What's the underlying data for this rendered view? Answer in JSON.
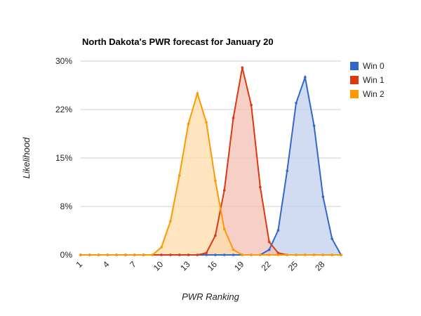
{
  "chart_data": {
    "type": "area",
    "title": "North Dakota's PWR forecast for January 20",
    "xlabel": "PWR Ranking",
    "ylabel": "Likelihood",
    "x": [
      1,
      2,
      3,
      4,
      5,
      6,
      7,
      8,
      9,
      10,
      11,
      12,
      13,
      14,
      15,
      16,
      17,
      18,
      19,
      20,
      21,
      22,
      23,
      24,
      25,
      26,
      27,
      28,
      29,
      30
    ],
    "x_ticks": [
      1,
      4,
      7,
      10,
      13,
      16,
      19,
      22,
      25,
      28
    ],
    "y_ticks": [
      {
        "value": 0,
        "label": "0%"
      },
      {
        "value": 7.5,
        "label": "8%"
      },
      {
        "value": 15,
        "label": "15%"
      },
      {
        "value": 22.5,
        "label": "22%"
      },
      {
        "value": 30,
        "label": "30%"
      }
    ],
    "ylim": [
      0,
      30
    ],
    "xlim": [
      1,
      30
    ],
    "grid": true,
    "legend_position": "right",
    "series": [
      {
        "name": "Win 0",
        "color": "#3366cc",
        "fill": "#c2d0ee",
        "values": [
          0,
          0,
          0,
          0,
          0,
          0,
          0,
          0,
          0,
          0,
          0,
          0,
          0,
          0,
          0,
          0,
          0,
          0,
          0,
          0,
          0,
          0.8,
          3.8,
          13,
          23.5,
          27.5,
          20,
          9,
          2.5,
          0
        ]
      },
      {
        "name": "Win 1",
        "color": "#dc3912",
        "fill": "#f3c0b4",
        "values": [
          0,
          0,
          0,
          0,
          0,
          0,
          0,
          0,
          0,
          0,
          0,
          0,
          0,
          0,
          0.3,
          3,
          10,
          21.2,
          29,
          23.2,
          10.5,
          2,
          0.3,
          0,
          0,
          0,
          0,
          0,
          0,
          0
        ]
      },
      {
        "name": "Win 2",
        "color": "#ff9900",
        "fill": "#ffdcaa",
        "values": [
          0,
          0,
          0,
          0,
          0,
          0,
          0,
          0,
          0,
          1.2,
          5.2,
          12.3,
          20.3,
          25,
          20.5,
          11.5,
          4,
          0.8,
          0,
          0,
          0,
          0,
          0,
          0,
          0,
          0,
          0,
          0,
          0,
          0
        ]
      }
    ]
  }
}
